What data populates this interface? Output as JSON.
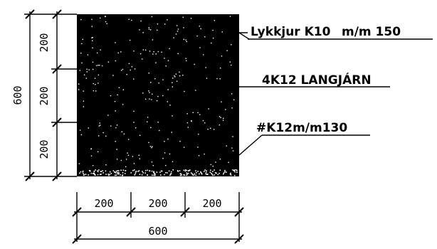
{
  "section": {
    "width_total": "600",
    "height_total": "600",
    "bottom_dims": [
      "200",
      "200",
      "200"
    ],
    "side_dims": [
      "200",
      "200",
      "200"
    ]
  },
  "labels": {
    "stirrups": "Lykkjur K10",
    "stirrups_spacing": "m/m 150",
    "long_bars": "4K12 LANGJÁRN",
    "side_bars": "#K12m/m130"
  },
  "colors": {
    "section_fill": "#000000",
    "speckle": "#ffffff",
    "line": "#000000"
  }
}
